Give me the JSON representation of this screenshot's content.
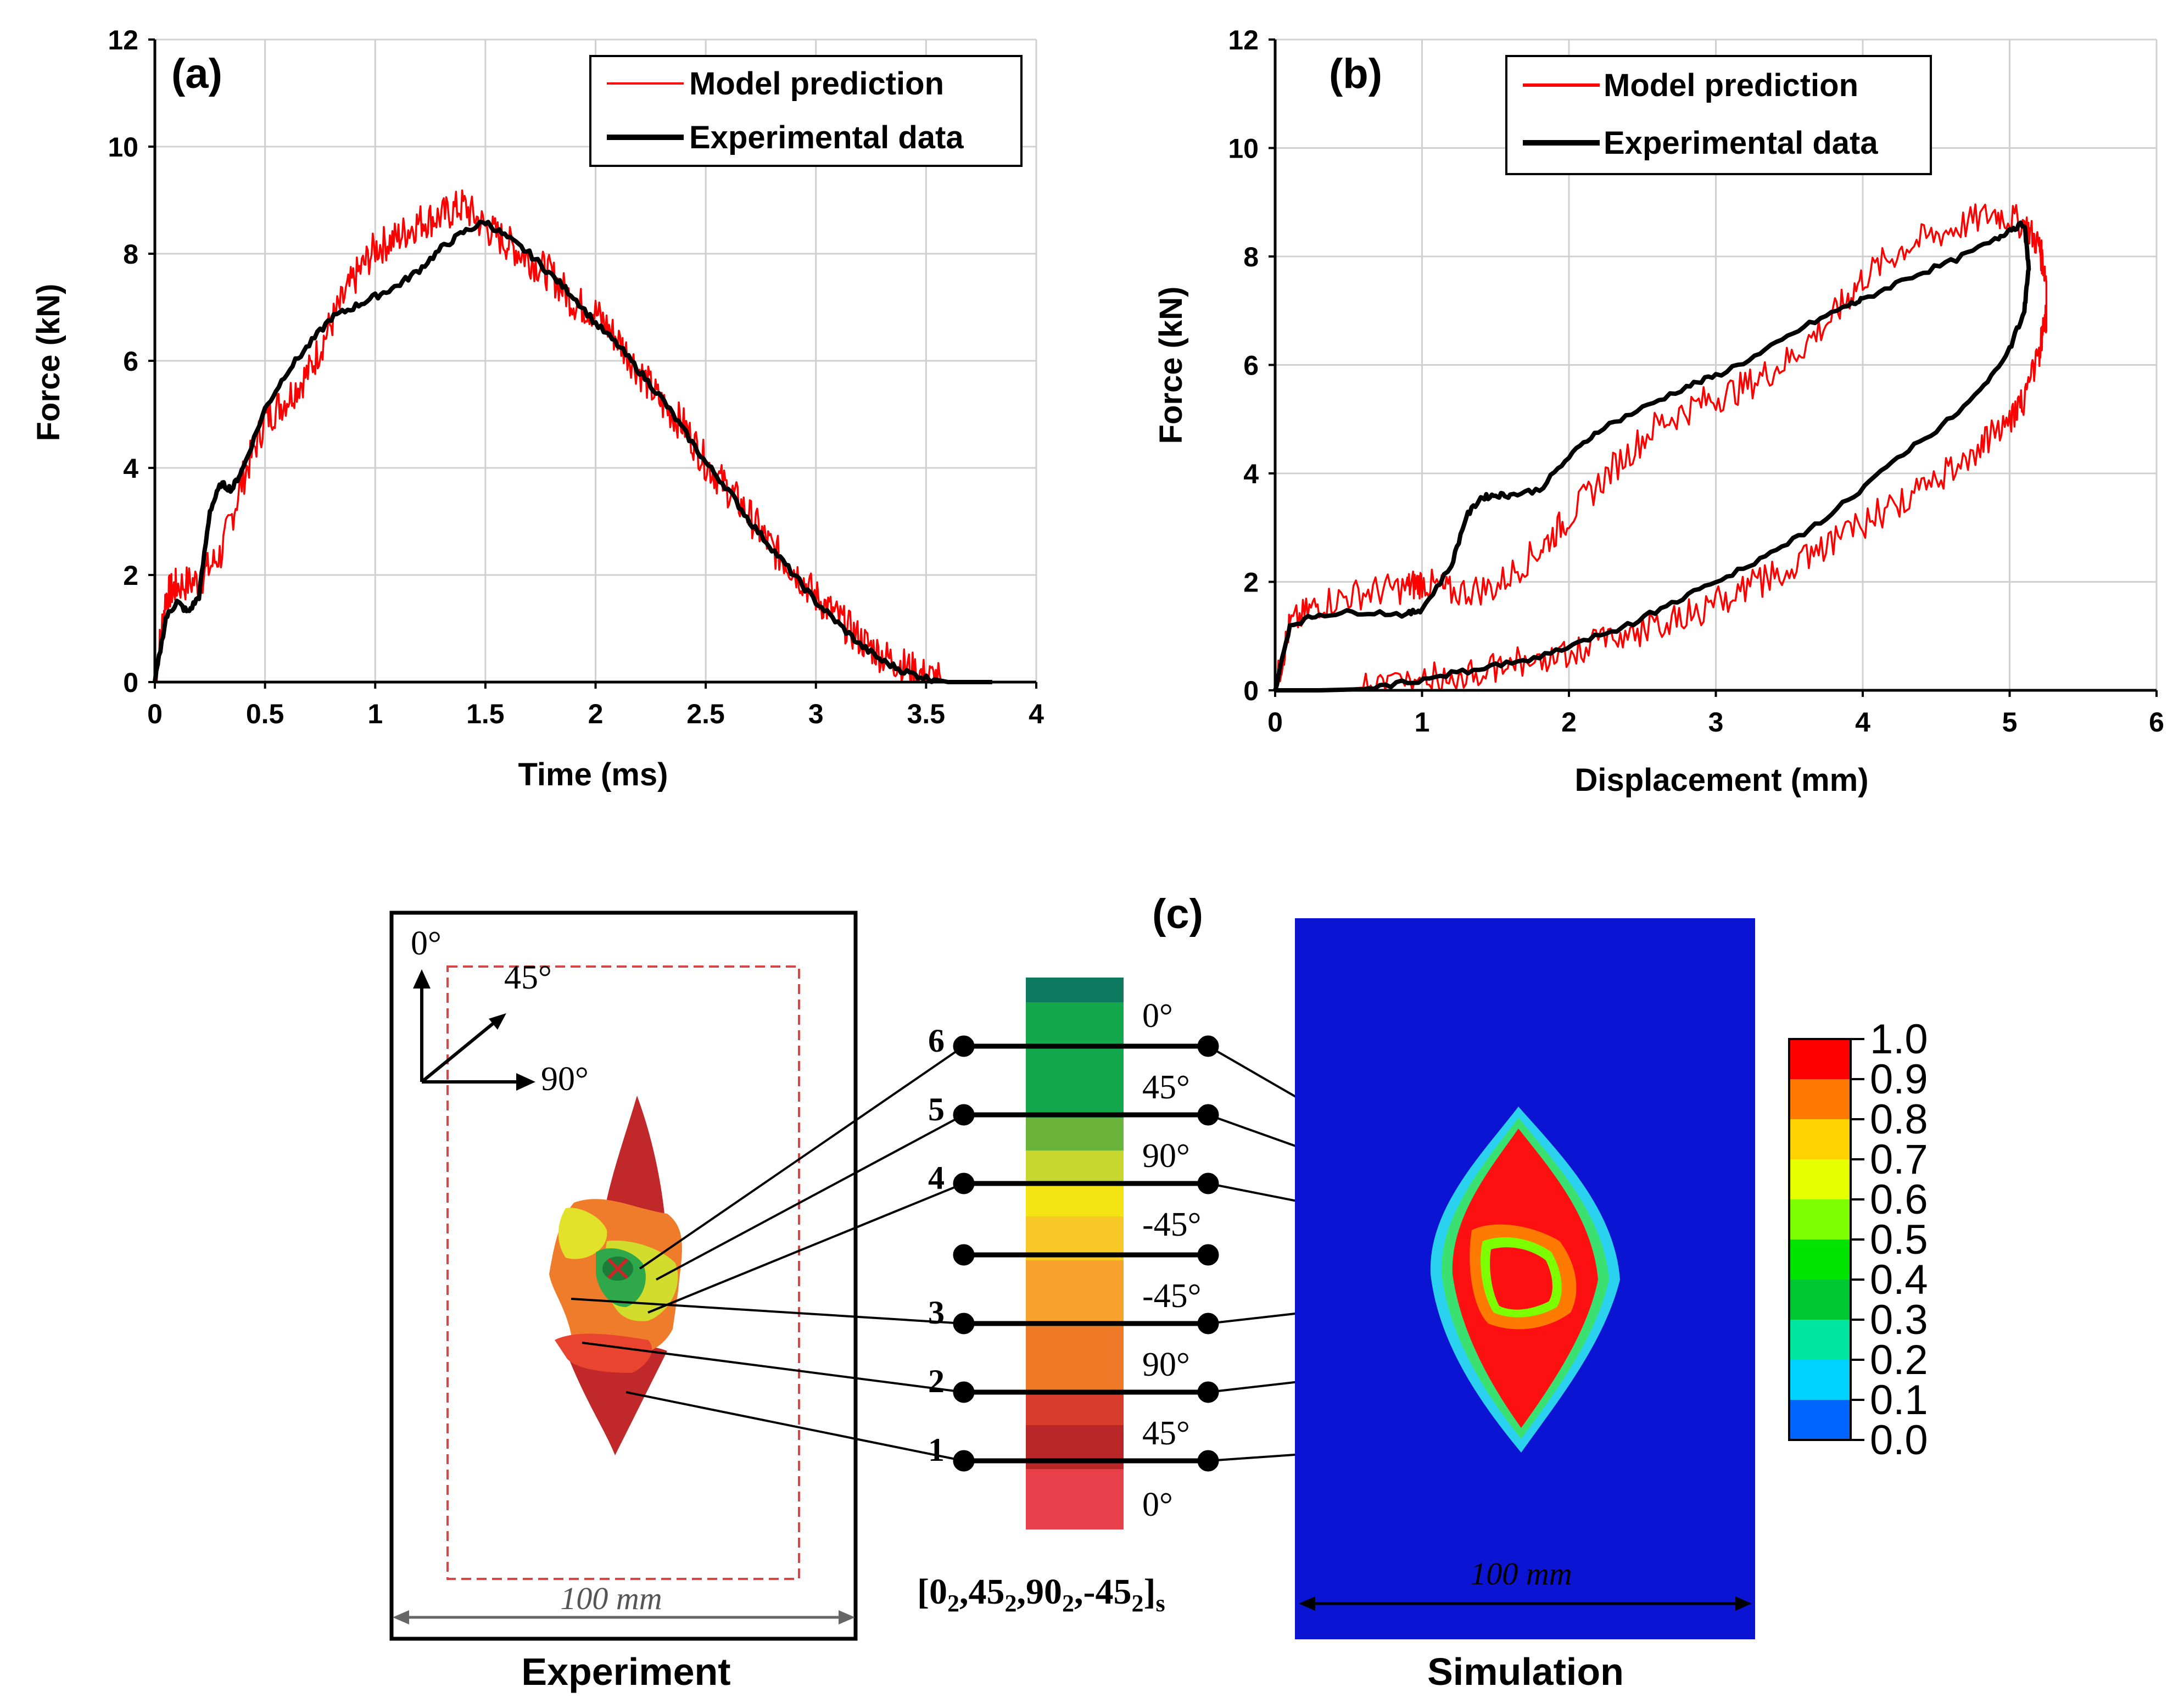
{
  "panels": {
    "a": {
      "label": "(a)",
      "xlabel": "Time (ms)",
      "ylabel": "Force (kN)",
      "xticks": [
        "0",
        "0.5",
        "1",
        "1.5",
        "2",
        "2.5",
        "3",
        "3.5",
        "4"
      ],
      "yticks": [
        "0",
        "2",
        "4",
        "6",
        "8",
        "10",
        "12"
      ],
      "legend": [
        "Model prediction",
        "Experimental data"
      ]
    },
    "b": {
      "label": "(b)",
      "xlabel": "Displacement (mm)",
      "ylabel": "Force (kN)",
      "xticks": [
        "0",
        "1",
        "2",
        "3",
        "4",
        "5",
        "6"
      ],
      "yticks": [
        "0",
        "2",
        "4",
        "6",
        "8",
        "10",
        "12"
      ],
      "legend": [
        "Model prediction",
        "Experimental data"
      ]
    },
    "c": {
      "label": "(c)",
      "experiment_caption": "Experiment",
      "simulation_caption": "Simulation",
      "width_label": "100 mm",
      "width_label_sim": "100 mm",
      "orientation_labels": [
        "0°",
        "45°",
        "90°"
      ],
      "ply_angles": [
        "0°",
        "45°",
        "90°",
        "-45°",
        "-45°",
        "90°",
        "45°",
        "0°"
      ],
      "interface_numbers": [
        "6",
        "5",
        "4",
        "3",
        "2",
        "1"
      ],
      "layup_main": "[0",
      "layup_parts": [
        "2",
        ",45",
        "2",
        ",90",
        "2",
        ",-45",
        "2",
        "]",
        "s"
      ],
      "colorbar_labels": [
        "1.0",
        "0.9",
        "0.8",
        "0.7",
        "0.6",
        "0.5",
        "0.4",
        "0.3",
        "0.2",
        "0.1",
        "0.0"
      ],
      "colorbar_colors": [
        "#ff0000",
        "#ff7a00",
        "#ffd200",
        "#e6ff00",
        "#7cff00",
        "#00e400",
        "#00c832",
        "#00e6a0",
        "#00d2ff",
        "#0064ff",
        "#0000ff"
      ]
    }
  },
  "chart_data": [
    {
      "type": "line",
      "title": "(a)",
      "xlabel": "Time (ms)",
      "ylabel": "Force (kN)",
      "xlim": [
        0,
        4
      ],
      "ylim": [
        0,
        12
      ],
      "grid": true,
      "legend_position": "top-right",
      "series": [
        {
          "name": "Model prediction",
          "color": "#ff0000",
          "noise": 0.35,
          "x": [
            0,
            0.05,
            0.1,
            0.2,
            0.3,
            0.4,
            0.5,
            0.6,
            0.7,
            0.8,
            0.9,
            1.0,
            1.1,
            1.2,
            1.3,
            1.4,
            1.5,
            1.6,
            1.7,
            1.8,
            1.9,
            2.0,
            2.1,
            2.2,
            2.3,
            2.4,
            2.5,
            2.6,
            2.7,
            2.8,
            2.9,
            3.0,
            3.1,
            3.2,
            3.3,
            3.4,
            3.5,
            3.6,
            3.7,
            3.8
          ],
          "y": [
            0,
            1.6,
            1.8,
            1.9,
            2.4,
            3.8,
            4.9,
            5.3,
            5.8,
            6.7,
            7.5,
            8.1,
            8.3,
            8.6,
            8.7,
            8.9,
            8.5,
            8.2,
            7.9,
            7.6,
            7.1,
            6.9,
            6.4,
            5.8,
            5.2,
            4.8,
            4.1,
            3.6,
            3.1,
            2.5,
            2.1,
            1.6,
            1.2,
            0.8,
            0.5,
            0.3,
            0.1,
            0.02,
            0.0,
            0.0
          ]
        },
        {
          "name": "Experimental data",
          "color": "#000000",
          "noise": 0.06,
          "x": [
            0,
            0.05,
            0.1,
            0.15,
            0.2,
            0.25,
            0.3,
            0.35,
            0.4,
            0.5,
            0.6,
            0.7,
            0.8,
            0.9,
            1.0,
            1.1,
            1.2,
            1.3,
            1.4,
            1.5,
            1.6,
            1.7,
            1.8,
            1.9,
            2.0,
            2.1,
            2.2,
            2.3,
            2.4,
            2.5,
            2.6,
            2.7,
            2.8,
            2.9,
            3.0,
            3.1,
            3.2,
            3.3,
            3.4,
            3.5,
            3.6,
            3.65,
            3.7,
            3.8
          ],
          "y": [
            0,
            1.2,
            1.5,
            1.3,
            1.6,
            3.2,
            3.7,
            3.6,
            4.0,
            5.1,
            5.8,
            6.3,
            6.8,
            7.0,
            7.2,
            7.4,
            7.7,
            8.1,
            8.4,
            8.6,
            8.3,
            8.0,
            7.6,
            7.2,
            6.7,
            6.3,
            5.8,
            5.3,
            4.7,
            4.1,
            3.6,
            3.0,
            2.5,
            2.0,
            1.5,
            1.1,
            0.7,
            0.4,
            0.2,
            0.08,
            0.0,
            0.0,
            0.0,
            0.0
          ]
        }
      ]
    },
    {
      "type": "line",
      "title": "(b)",
      "xlabel": "Displacement (mm)",
      "ylabel": "Force (kN)",
      "xlim": [
        0,
        6
      ],
      "ylim": [
        0,
        12
      ],
      "grid": true,
      "legend_position": "top-right",
      "series": [
        {
          "name": "Model prediction",
          "color": "#ff0000",
          "noise": 0.3,
          "x": [
            0,
            0.1,
            0.3,
            0.6,
            0.9,
            1.0,
            1.2,
            1.5,
            1.8,
            2.0,
            2.3,
            2.6,
            2.9,
            3.2,
            3.5,
            3.8,
            4.0,
            4.3,
            4.6,
            4.9,
            5.1,
            5.2,
            5.25,
            5.25,
            5.2,
            5.1,
            5.0,
            4.8,
            4.5,
            4.2,
            3.9,
            3.6,
            3.3,
            3.0,
            2.7,
            2.4,
            2.1,
            1.8,
            1.5,
            1.2,
            0.9,
            0.6,
            0.3,
            0.0
          ],
          "y": [
            0,
            1.2,
            1.6,
            1.8,
            1.9,
            2.0,
            1.8,
            1.9,
            2.6,
            3.2,
            4.1,
            4.9,
            5.3,
            5.6,
            6.1,
            6.9,
            7.6,
            8.2,
            8.5,
            8.8,
            8.6,
            8.2,
            7.6,
            6.9,
            6.2,
            5.4,
            5.0,
            4.5,
            3.9,
            3.4,
            2.9,
            2.4,
            2.0,
            1.6,
            1.3,
            1.0,
            0.8,
            0.6,
            0.4,
            0.3,
            0.15,
            0.05,
            0.0,
            0.0
          ]
        },
        {
          "name": "Experimental data",
          "color": "#000000",
          "noise": 0.05,
          "x": [
            0,
            0.1,
            0.3,
            0.6,
            0.9,
            1.0,
            1.2,
            1.3,
            1.4,
            1.5,
            1.6,
            1.8,
            2.0,
            2.2,
            2.5,
            2.8,
            3.0,
            3.3,
            3.6,
            3.9,
            4.0,
            4.3,
            4.6,
            4.9,
            5.0,
            5.1,
            5.13,
            5.1,
            5.0,
            4.8,
            4.5,
            4.2,
            3.9,
            3.6,
            3.3,
            3.0,
            2.7,
            2.4,
            2.1,
            1.8,
            1.5,
            1.2,
            0.9,
            0.6,
            0.3,
            0.0
          ],
          "y": [
            0,
            1.2,
            1.4,
            1.45,
            1.4,
            1.5,
            2.3,
            3.2,
            3.55,
            3.6,
            3.6,
            3.7,
            4.3,
            4.8,
            5.2,
            5.6,
            5.8,
            6.2,
            6.7,
            7.1,
            7.2,
            7.6,
            7.9,
            8.3,
            8.5,
            8.6,
            7.8,
            7.0,
            6.3,
            5.5,
            4.8,
            4.2,
            3.5,
            2.9,
            2.4,
            2.0,
            1.6,
            1.2,
            0.9,
            0.6,
            0.45,
            0.3,
            0.15,
            0.02,
            0.0,
            0.0
          ]
        }
      ]
    }
  ]
}
